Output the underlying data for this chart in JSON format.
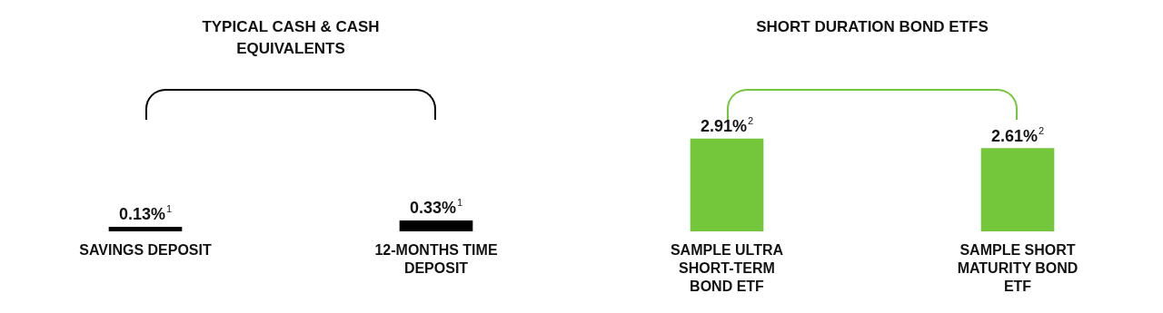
{
  "chart_data": {
    "type": "bar",
    "categories": [
      "SAVINGS DEPOSIT",
      "12-MONTHS TIME DEPOSIT",
      "SAMPLE ULTRA SHORT-TERM BOND ETF",
      "SAMPLE SHORT MATURITY BOND ETF"
    ],
    "values": [
      0.13,
      0.33,
      2.91,
      2.61
    ],
    "colors": [
      "#000000",
      "#000000",
      "#74c63a",
      "#74c63a"
    ],
    "value_labels": [
      "0.13%$^{1}$",
      "0.33%$^{1}$",
      "2.91%$^{2}$",
      "2.61%$^{2}$"
    ],
    "annotations": [
      "TYPICAL CASH & CASH EQUIVALENTS",
      "SHORT DURATION BOND ETFS"
    ]
  }
}
